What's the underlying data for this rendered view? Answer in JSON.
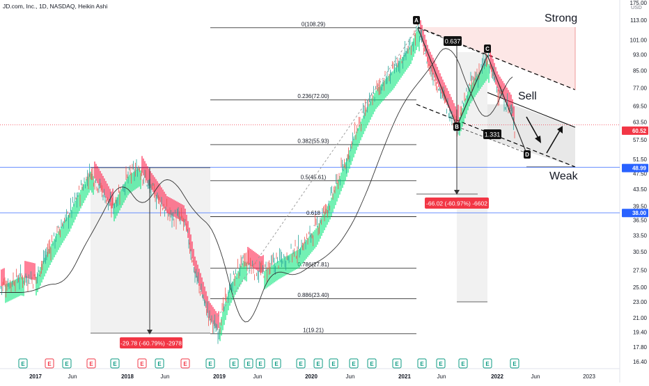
{
  "header": {
    "title": "JD.com, Inc., 1D, NASDAQ, Heikin Ashi"
  },
  "chart_data": {
    "type": "candlestick",
    "currency": "USD",
    "price_axis": {
      "ticks": [
        175.0,
        113.0,
        101.0,
        93.0,
        85.0,
        77.0,
        69.5,
        63.5,
        57.5,
        51.5,
        47.5,
        43.5,
        39.5,
        36.5,
        33.5,
        30.5,
        27.5,
        25.0,
        23.0,
        21.0,
        19.4,
        17.8,
        16.4
      ],
      "tick_labels": [
        "175.00",
        "113.00",
        "101.00",
        "93.00",
        "85.00",
        "77.00",
        "69.50",
        "63.50",
        "57.50",
        "51.50",
        "47.50",
        "43.50",
        "39.50",
        "36.50",
        "33.50",
        "30.50",
        "27.50",
        "25.00",
        "23.00",
        "21.00",
        "19.40",
        "17.80",
        "16.40"
      ],
      "markers": [
        {
          "value": 60.52,
          "label": "60.52",
          "color": "#f23645"
        },
        {
          "value": 48.99,
          "label": "48.99",
          "color": "#2962ff"
        },
        {
          "value": 38.0,
          "label": "38.00",
          "color": "#2962ff"
        }
      ]
    },
    "time_axis": {
      "labels": [
        "2017",
        "Jun",
        "2018",
        "Jun",
        "2019",
        "Jun",
        "2020",
        "Jun",
        "2021",
        "Jun",
        "2022",
        "Jun",
        "2023"
      ],
      "bold": [
        true,
        false,
        true,
        false,
        true,
        false,
        true,
        false,
        true,
        false,
        true,
        false,
        false
      ]
    },
    "fib_levels": [
      {
        "ratio": 0,
        "price": 108.29,
        "label": "0(108.29)"
      },
      {
        "ratio": 0.236,
        "price": 72.0,
        "label": "0.236(72.00)"
      },
      {
        "ratio": 0.382,
        "price": 55.93,
        "label": "0.382(55.93)"
      },
      {
        "ratio": 0.5,
        "price": 45.61,
        "label": "0.5(45.61)"
      },
      {
        "ratio": 0.618,
        "price": 37.22,
        "label": "0.618"
      },
      {
        "ratio": 0.786,
        "price": 27.81,
        "label": "0.786(27.81)"
      },
      {
        "ratio": 0.886,
        "price": 23.4,
        "label": "0.886(23.40)"
      },
      {
        "ratio": 1,
        "price": 19.21,
        "label": "1(19.21)"
      }
    ],
    "measure_labels": [
      {
        "text": "-29.78 (-60.79%) -2978"
      },
      {
        "text": "-66.02 (-60.97%) -6602"
      }
    ],
    "pattern_points": [
      {
        "label": "A",
        "price": 108.29
      },
      {
        "label": "B",
        "price": 61.0
      },
      {
        "label": "C",
        "price": 92.0
      },
      {
        "label": "D",
        "price": 52.0
      }
    ],
    "ratio_labels": [
      "0.637",
      "1.331"
    ],
    "annotations": [
      "Strong",
      "Sell",
      "Weak"
    ],
    "event_markers": [
      "E",
      "E",
      "E",
      "E",
      "E",
      "E",
      "E",
      "E",
      "E",
      "E",
      "E",
      "E",
      "E",
      "E",
      "E",
      "E",
      "E",
      "E",
      "E",
      "E",
      "E",
      "E",
      "E",
      "E",
      "E"
    ],
    "event_colors": [
      "#089981",
      "#f23645",
      "#089981",
      "#f23645",
      "#089981",
      "#f23645",
      "#089981",
      "#f23645",
      "#089981",
      "#089981",
      "#089981",
      "#089981",
      "#089981",
      "#089981",
      "#089981",
      "#089981",
      "#089981",
      "#089981",
      "#089981",
      "#089981",
      "#089981",
      "#089981",
      "#089981",
      "#089981",
      "#f23645"
    ],
    "colors": {
      "up": "#26a69a",
      "down": "#ef5350",
      "ribbon_up": "#00e676",
      "ribbon_down": "#ff1744",
      "blue_line": "#2962ff"
    },
    "legend": "none",
    "grid": false
  }
}
